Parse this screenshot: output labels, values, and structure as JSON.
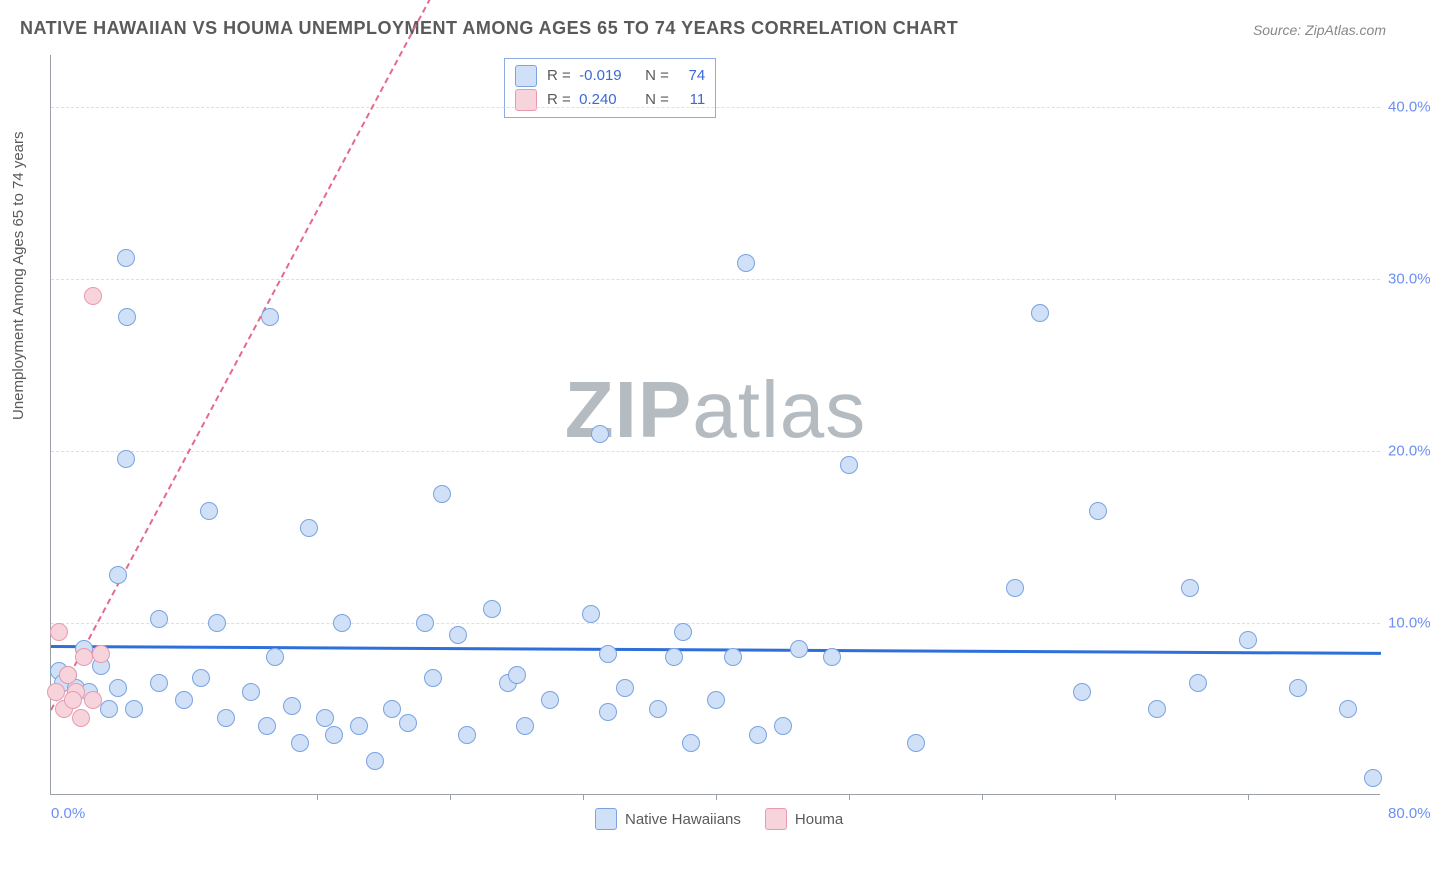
{
  "title": "NATIVE HAWAIIAN VS HOUMA UNEMPLOYMENT AMONG AGES 65 TO 74 YEARS CORRELATION CHART",
  "source": "Source: ZipAtlas.com",
  "y_axis_label": "Unemployment Among Ages 65 to 74 years",
  "watermark_bold": "ZIP",
  "watermark_rest": "atlas",
  "chart": {
    "type": "scatter",
    "xlim": [
      0,
      80
    ],
    "ylim": [
      0,
      43
    ],
    "x_ticks_minor": [
      16,
      24,
      32,
      40,
      48,
      56,
      64,
      72
    ],
    "y_gridlines": [
      10,
      20,
      30,
      40
    ],
    "y_tick_labels": [
      "10.0%",
      "20.0%",
      "30.0%",
      "40.0%"
    ],
    "x_tick_label_left": "0.0%",
    "x_tick_label_right": "80.0%",
    "background_color": "#ffffff",
    "grid_color": "#dcdfe3",
    "axis_color": "#9aa0a6",
    "tick_label_color": "#6b8ff5",
    "marker_radius": 9,
    "series": [
      {
        "name": "Native Hawaiians",
        "fill": "#cfe0f7",
        "stroke": "#7ba3e0",
        "trend_color": "#2e6fd9",
        "trend_width": 3,
        "trend_dash": "solid",
        "trend": {
          "y_at_x0": 8.7,
          "y_at_xmax": 8.3
        },
        "R": "-0.019",
        "N": "74",
        "points": [
          [
            4.5,
            31.2
          ],
          [
            4.6,
            27.8
          ],
          [
            13.2,
            27.8
          ],
          [
            41.8,
            30.9
          ],
          [
            59.5,
            28.0
          ],
          [
            4.5,
            19.5
          ],
          [
            9.5,
            16.5
          ],
          [
            15.5,
            15.5
          ],
          [
            23.5,
            17.5
          ],
          [
            33.0,
            21.0
          ],
          [
            48.0,
            19.2
          ],
          [
            63.0,
            16.5
          ],
          [
            4.0,
            12.8
          ],
          [
            6.5,
            10.2
          ],
          [
            10.0,
            10.0
          ],
          [
            13.5,
            8.0
          ],
          [
            17.5,
            10.0
          ],
          [
            22.5,
            10.0
          ],
          [
            24.5,
            9.3
          ],
          [
            26.5,
            10.8
          ],
          [
            32.5,
            10.5
          ],
          [
            33.5,
            8.2
          ],
          [
            38.0,
            9.5
          ],
          [
            41.0,
            8.0
          ],
          [
            45.0,
            8.5
          ],
          [
            58.0,
            12.0
          ],
          [
            68.5,
            12.0
          ],
          [
            0.5,
            7.2
          ],
          [
            0.7,
            6.5
          ],
          [
            1.0,
            7.0
          ],
          [
            1.5,
            6.2
          ],
          [
            2.0,
            8.5
          ],
          [
            2.3,
            6.0
          ],
          [
            3.0,
            7.5
          ],
          [
            3.5,
            5.0
          ],
          [
            4.0,
            6.2
          ],
          [
            5.0,
            5.0
          ],
          [
            6.5,
            6.5
          ],
          [
            8.0,
            5.5
          ],
          [
            9.0,
            6.8
          ],
          [
            10.5,
            4.5
          ],
          [
            12.0,
            6.0
          ],
          [
            13.0,
            4.0
          ],
          [
            14.5,
            5.2
          ],
          [
            15.0,
            3.0
          ],
          [
            16.5,
            4.5
          ],
          [
            17.0,
            3.5
          ],
          [
            18.5,
            4.0
          ],
          [
            19.5,
            2.0
          ],
          [
            20.5,
            5.0
          ],
          [
            21.5,
            4.2
          ],
          [
            23.0,
            6.8
          ],
          [
            25.0,
            3.5
          ],
          [
            27.5,
            6.5
          ],
          [
            28.5,
            4.0
          ],
          [
            28.0,
            7.0
          ],
          [
            30.0,
            5.5
          ],
          [
            33.5,
            4.8
          ],
          [
            34.5,
            6.2
          ],
          [
            36.5,
            5.0
          ],
          [
            37.5,
            8.0
          ],
          [
            38.5,
            3.0
          ],
          [
            40.0,
            5.5
          ],
          [
            42.5,
            3.5
          ],
          [
            44.0,
            4.0
          ],
          [
            47.0,
            8.0
          ],
          [
            52.0,
            3.0
          ],
          [
            62.0,
            6.0
          ],
          [
            66.5,
            5.0
          ],
          [
            69.0,
            6.5
          ],
          [
            72.0,
            9.0
          ],
          [
            75.0,
            6.2
          ],
          [
            78.0,
            5.0
          ],
          [
            79.5,
            1.0
          ]
        ]
      },
      {
        "name": "Houma",
        "fill": "#f7d4dc",
        "stroke": "#e89bb0",
        "trend_color": "#e66a8b",
        "trend_width": 2,
        "trend_dash": "dashed",
        "trend": {
          "y_at_x0": 5.0,
          "y_at_xmax": 150
        },
        "R": "0.240",
        "N": "11",
        "points": [
          [
            2.5,
            29.0
          ],
          [
            0.5,
            9.5
          ],
          [
            1.0,
            7.0
          ],
          [
            1.5,
            6.0
          ],
          [
            2.0,
            8.0
          ],
          [
            2.5,
            5.5
          ],
          [
            3.0,
            8.2
          ],
          [
            0.3,
            6.0
          ],
          [
            0.8,
            5.0
          ],
          [
            1.3,
            5.5
          ],
          [
            1.8,
            4.5
          ]
        ]
      }
    ],
    "series_legend": [
      {
        "label": "Native Hawaiians",
        "fill": "#cfe0f7",
        "stroke": "#7ba3e0"
      },
      {
        "label": "Houma",
        "fill": "#f7d4dc",
        "stroke": "#e89bb0"
      }
    ]
  }
}
